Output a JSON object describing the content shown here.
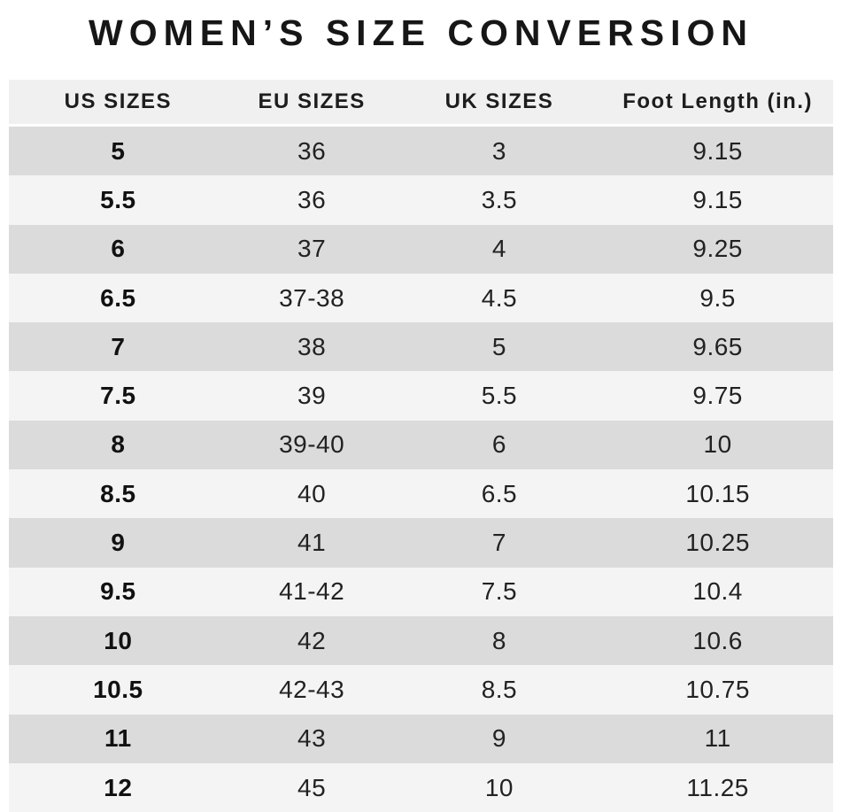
{
  "title": "WOMEN’S SIZE CONVERSION",
  "chart_data": {
    "type": "table",
    "title": "WOMEN’S SIZE CONVERSION",
    "columns": [
      "US SIZES",
      "EU SIZES",
      "UK SIZES",
      "Foot Length (in.)"
    ],
    "rows": [
      [
        "5",
        "36",
        "3",
        "9.15"
      ],
      [
        "5.5",
        "36",
        "3.5",
        "9.15"
      ],
      [
        "6",
        "37",
        "4",
        "9.25"
      ],
      [
        "6.5",
        "37-38",
        "4.5",
        "9.5"
      ],
      [
        "7",
        "38",
        "5",
        "9.65"
      ],
      [
        "7.5",
        "39",
        "5.5",
        "9.75"
      ],
      [
        "8",
        "39-40",
        "6",
        "10"
      ],
      [
        "8.5",
        "40",
        "6.5",
        "10.15"
      ],
      [
        "9",
        "41",
        "7",
        "10.25"
      ],
      [
        "9.5",
        "41-42",
        "7.5",
        "10.4"
      ],
      [
        "10",
        "42",
        "8",
        "10.6"
      ],
      [
        "10.5",
        "42-43",
        "8.5",
        "10.75"
      ],
      [
        "11",
        "43",
        "9",
        "11"
      ],
      [
        "12",
        "45",
        "10",
        "11.25"
      ]
    ],
    "layout": {
      "legend": false,
      "grid": false,
      "row_alternating_shading": true
    }
  },
  "colors": {
    "page_background": "#ffffff",
    "header_background": "#f0f0f0",
    "row_dark": "#dbdbdb",
    "row_light": "#f4f4f4",
    "text": "#1d1d1d"
  }
}
